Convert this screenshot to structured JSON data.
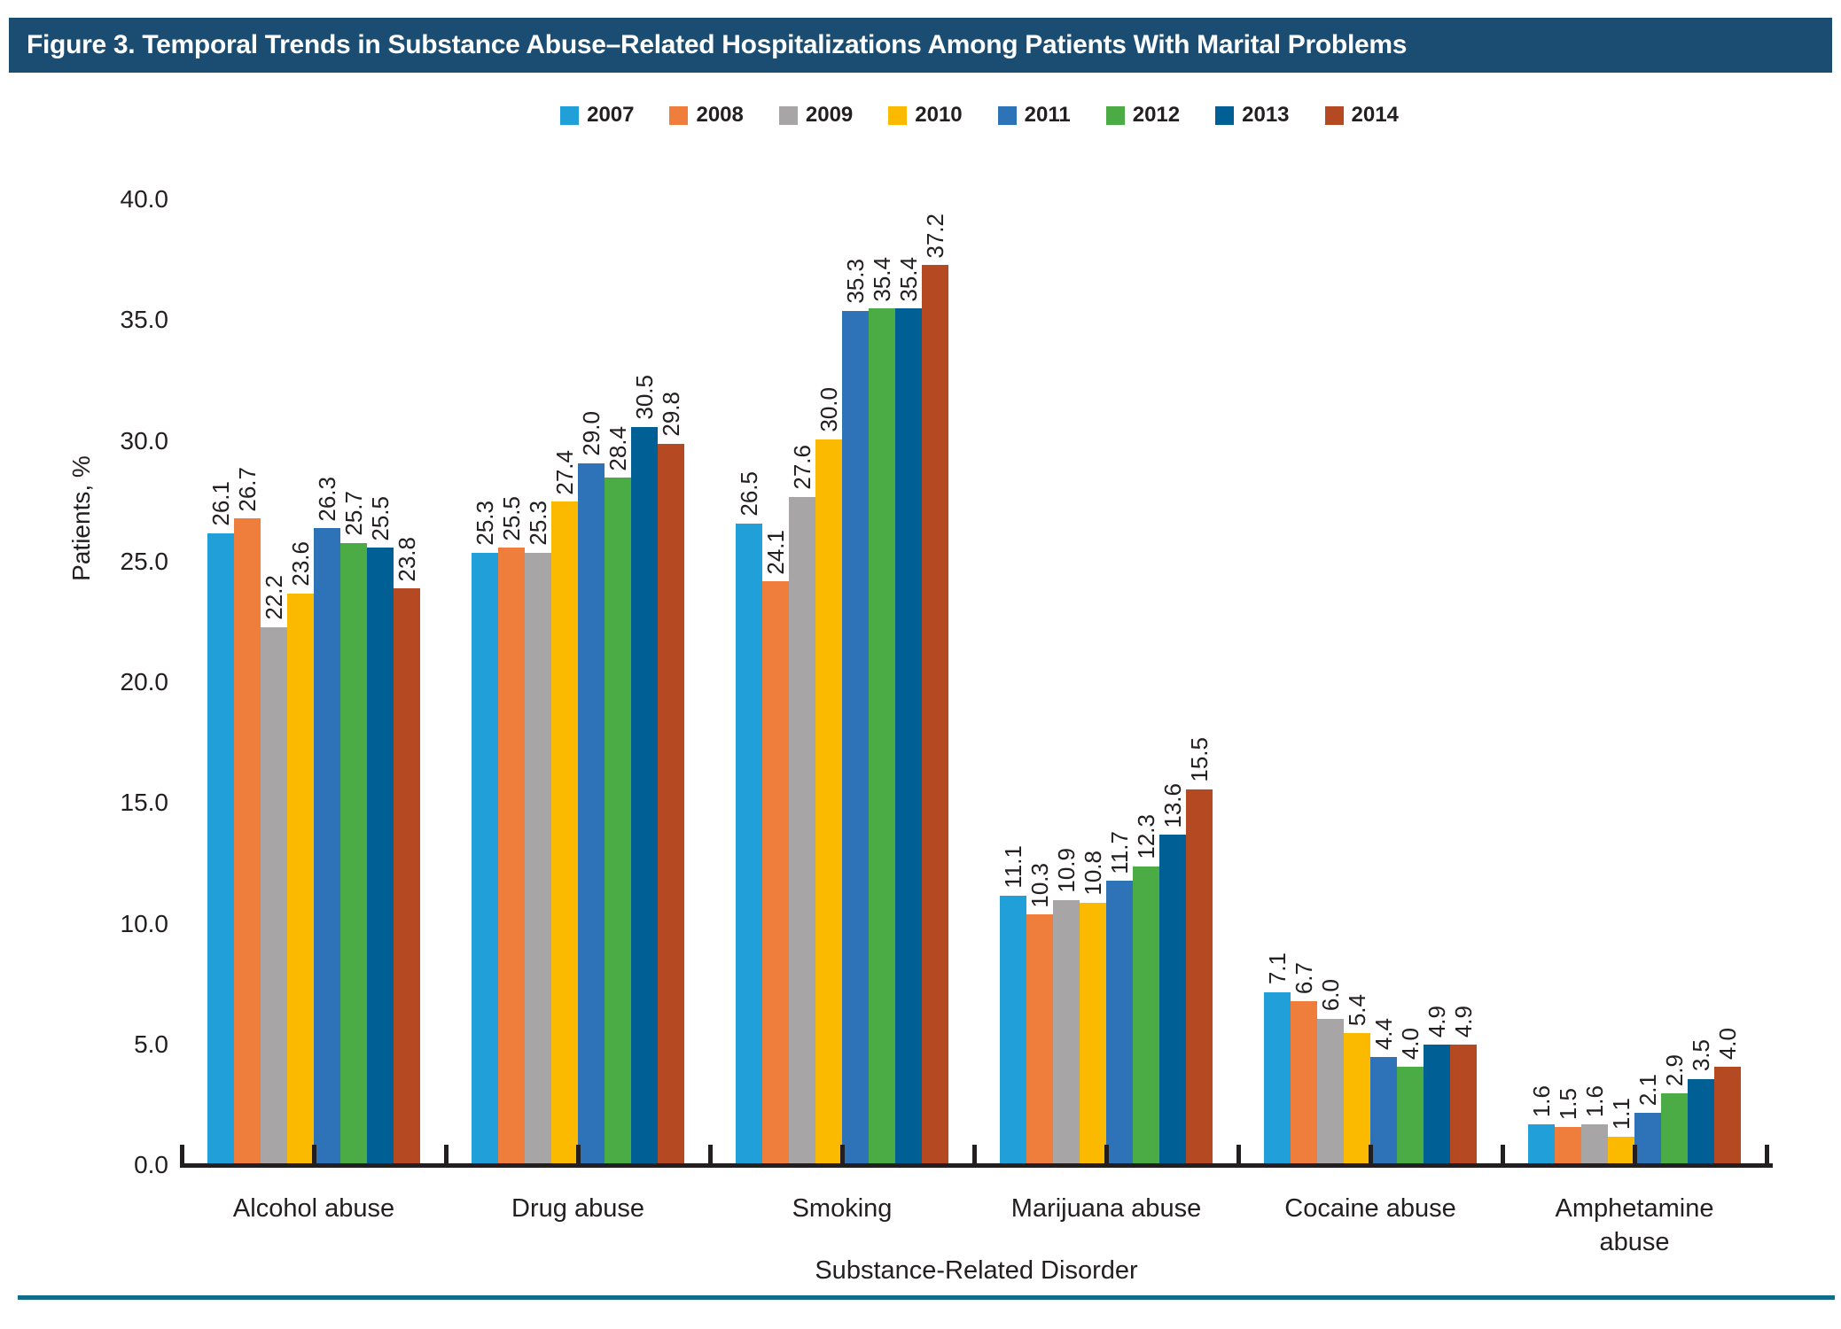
{
  "figure": {
    "title": "Figure 3. Temporal Trends in Substance Abuse–Related Hospitalizations Among Patients With Marital Problems"
  },
  "colors": {
    "title_bar": "#1B4D72",
    "separator": "#116B8B",
    "axis": "#231F20",
    "text": "#231F20"
  },
  "chart_data": {
    "type": "bar",
    "title": "Figure 3. Temporal Trends in Substance Abuse–Related Hospitalizations Among Patients With Marital Problems",
    "xlabel": "Substance-Related Disorder",
    "ylabel": "Patients, %",
    "ylim": [
      0,
      40
    ],
    "ytick_step": 5,
    "yticks": [
      "0.0",
      "5.0",
      "10.0",
      "15.0",
      "20.0",
      "25.0",
      "30.0",
      "35.0",
      "40.0"
    ],
    "grid": false,
    "legend_position": "top-center",
    "value_labels": "rotated-90-above-bars",
    "categories": [
      "Alcohol abuse",
      "Drug abuse",
      "Smoking",
      "Marijuana abuse",
      "Cocaine abuse",
      "Amphetamine\nabuse"
    ],
    "series": [
      {
        "name": "2007",
        "color": "#219FD9",
        "values": [
          26.1,
          25.3,
          26.5,
          11.1,
          7.1,
          1.6
        ]
      },
      {
        "name": "2008",
        "color": "#EF7D3C",
        "values": [
          26.7,
          25.5,
          24.1,
          10.3,
          6.7,
          1.5
        ]
      },
      {
        "name": "2009",
        "color": "#A7A5A6",
        "values": [
          22.2,
          25.3,
          27.6,
          10.9,
          6.0,
          1.6
        ]
      },
      {
        "name": "2010",
        "color": "#FBB900",
        "values": [
          23.6,
          27.4,
          30.0,
          10.8,
          5.4,
          1.1
        ]
      },
      {
        "name": "2011",
        "color": "#2E73B8",
        "values": [
          26.3,
          29.0,
          35.3,
          11.7,
          4.4,
          2.1
        ]
      },
      {
        "name": "2012",
        "color": "#4BAC45",
        "values": [
          25.7,
          28.4,
          35.4,
          12.3,
          4.0,
          2.9
        ]
      },
      {
        "name": "2013",
        "color": "#005F95",
        "values": [
          25.5,
          30.5,
          35.4,
          13.6,
          4.9,
          3.5
        ]
      },
      {
        "name": "2014",
        "color": "#B54A22",
        "values": [
          23.8,
          29.8,
          37.2,
          15.5,
          4.9,
          4.0
        ]
      }
    ]
  }
}
